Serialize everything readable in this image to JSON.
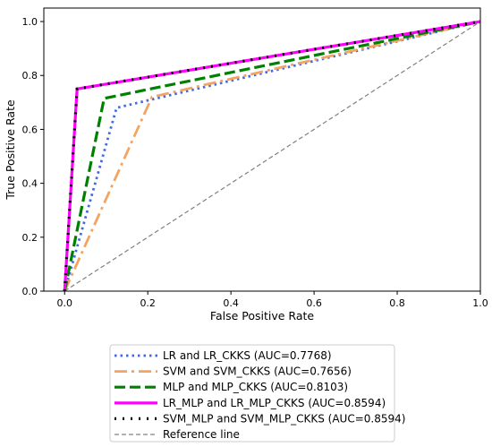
{
  "chart_data": {
    "type": "line",
    "title": "",
    "xlabel": "False Positive Rate",
    "ylabel": "True Positive Rate",
    "xlim": [
      -0.05,
      1.0
    ],
    "ylim": [
      0.0,
      1.05
    ],
    "xticks": [
      "0.0",
      "0.2",
      "0.4",
      "0.6",
      "0.8",
      "1.0"
    ],
    "yticks": [
      "0.0",
      "0.2",
      "0.4",
      "0.6",
      "0.8",
      "1.0"
    ],
    "grid": false,
    "legend_position": "below",
    "series": [
      {
        "name": "LR and LR_CKKS (AUC=0.7768)",
        "x": [
          0.0,
          0.125,
          1.0
        ],
        "y": [
          0.0,
          0.68,
          1.0
        ],
        "color": "#4169e1",
        "style": "dotted"
      },
      {
        "name": "SVM and SVM_CKKS (AUC=0.7656)",
        "x": [
          0.0,
          0.21,
          1.0
        ],
        "y": [
          0.0,
          0.72,
          1.0
        ],
        "color": "#f4a460",
        "style": "dashdot"
      },
      {
        "name": "MLP and MLP_CKKS (AUC=0.8103)",
        "x": [
          0.0,
          0.095,
          1.0
        ],
        "y": [
          0.0,
          0.715,
          1.0
        ],
        "color": "#008000",
        "style": "dashed"
      },
      {
        "name": "LR_MLP and LR_MLP_CKKS (AUC=0.8594)",
        "x": [
          0.0,
          0.03,
          1.0
        ],
        "y": [
          0.0,
          0.75,
          1.0
        ],
        "color": "#ff00ff",
        "style": "solid"
      },
      {
        "name": "SVM_MLP and SVM_MLP_CKKS (AUC=0.8594)",
        "x": [
          0.0,
          0.03,
          1.0
        ],
        "y": [
          0.0,
          0.75,
          1.0
        ],
        "color": "#000000",
        "style": "dotted-thick"
      },
      {
        "name": "Reference line",
        "x": [
          0.0,
          1.0
        ],
        "y": [
          0.0,
          1.0
        ],
        "color": "#808080",
        "style": "dashed-thin"
      }
    ]
  }
}
